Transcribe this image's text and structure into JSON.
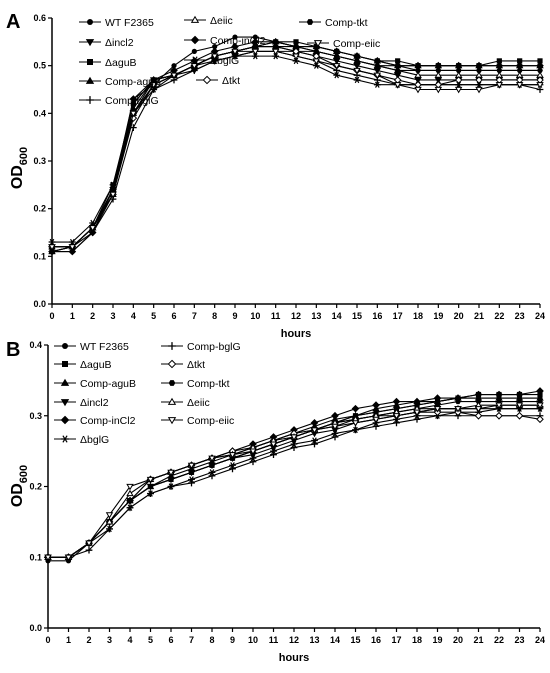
{
  "chart_data": [
    {
      "panel_label": "A",
      "type": "line",
      "xlabel": "hours",
      "ylabel_main": "OD",
      "ylabel_sub": "600",
      "xlim": [
        0,
        24
      ],
      "ylim": [
        0,
        0.6
      ],
      "xticks": [
        "0",
        "1",
        "2",
        "3",
        "4",
        "5",
        "6",
        "7",
        "8",
        "9",
        "10",
        "11",
        "12",
        "13",
        "14",
        "15",
        "16",
        "17",
        "18",
        "19",
        "20",
        "21",
        "22",
        "23",
        "24"
      ],
      "yticks": [
        "0.0",
        "0.1",
        "0.2",
        "0.3",
        "0.4",
        "0.5",
        "0.6"
      ],
      "grid": false,
      "legend": "top",
      "x": [
        0,
        1,
        2,
        3,
        4,
        5,
        6,
        7,
        8,
        9,
        10,
        11,
        12,
        13,
        14,
        15,
        16,
        17,
        18,
        19,
        20,
        21,
        22,
        23,
        24
      ],
      "series": [
        {
          "name": "WT F2365",
          "marker": "circle",
          "values": [
            0.11,
            0.11,
            0.15,
            0.23,
            0.43,
            0.46,
            0.5,
            0.53,
            0.54,
            0.56,
            0.56,
            0.55,
            0.54,
            0.53,
            0.52,
            0.51,
            0.5,
            0.5,
            0.49,
            0.49,
            0.49,
            0.49,
            0.49,
            0.49,
            0.49
          ]
        },
        {
          "name": "Δincl2",
          "marker": "tri-down",
          "values": [
            0.12,
            0.12,
            0.16,
            0.24,
            0.4,
            0.47,
            0.48,
            0.49,
            0.51,
            0.52,
            0.53,
            0.53,
            0.53,
            0.52,
            0.51,
            0.5,
            0.49,
            0.48,
            0.47,
            0.47,
            0.47,
            0.47,
            0.47,
            0.47,
            0.47
          ]
        },
        {
          "name": "ΔaguB",
          "marker": "square",
          "values": [
            0.11,
            0.12,
            0.16,
            0.25,
            0.42,
            0.47,
            0.48,
            0.5,
            0.52,
            0.53,
            0.54,
            0.55,
            0.55,
            0.54,
            0.53,
            0.52,
            0.51,
            0.51,
            0.5,
            0.5,
            0.5,
            0.5,
            0.51,
            0.51,
            0.51
          ]
        },
        {
          "name": "Comp-aguB",
          "marker": "tri-up",
          "values": [
            0.11,
            0.12,
            0.16,
            0.24,
            0.41,
            0.47,
            0.48,
            0.5,
            0.52,
            0.53,
            0.54,
            0.55,
            0.54,
            0.54,
            0.53,
            0.52,
            0.51,
            0.5,
            0.5,
            0.5,
            0.5,
            0.5,
            0.5,
            0.5,
            0.5
          ]
        },
        {
          "name": "Comp-bglG",
          "marker": "plus",
          "values": [
            0.12,
            0.12,
            0.15,
            0.22,
            0.37,
            0.45,
            0.47,
            0.49,
            0.51,
            0.52,
            0.53,
            0.53,
            0.52,
            0.51,
            0.49,
            0.48,
            0.47,
            0.46,
            0.46,
            0.46,
            0.46,
            0.46,
            0.46,
            0.46,
            0.45
          ]
        },
        {
          "name": "Δeiic",
          "marker": "tri-up-open",
          "values": [
            0.12,
            0.12,
            0.16,
            0.23,
            0.4,
            0.46,
            0.48,
            0.5,
            0.52,
            0.53,
            0.54,
            0.54,
            0.53,
            0.53,
            0.52,
            0.51,
            0.5,
            0.49,
            0.48,
            0.48,
            0.48,
            0.48,
            0.48,
            0.48,
            0.48
          ]
        },
        {
          "name": "Comp-inCl2",
          "marker": "diamond",
          "values": [
            0.11,
            0.11,
            0.15,
            0.24,
            0.43,
            0.47,
            0.49,
            0.51,
            0.53,
            0.54,
            0.55,
            0.55,
            0.54,
            0.54,
            0.53,
            0.52,
            0.51,
            0.5,
            0.5,
            0.5,
            0.5,
            0.5,
            0.5,
            0.5,
            0.5
          ]
        },
        {
          "name": "ΔbglG",
          "marker": "star",
          "values": [
            0.13,
            0.13,
            0.17,
            0.25,
            0.4,
            0.45,
            0.48,
            0.5,
            0.51,
            0.52,
            0.52,
            0.52,
            0.51,
            0.5,
            0.48,
            0.47,
            0.46,
            0.46,
            0.46,
            0.46,
            0.46,
            0.46,
            0.46,
            0.46,
            0.46
          ]
        },
        {
          "name": "Δtkt",
          "marker": "diamond-open",
          "values": [
            0.12,
            0.12,
            0.16,
            0.23,
            0.39,
            0.46,
            0.48,
            0.5,
            0.52,
            0.53,
            0.54,
            0.54,
            0.53,
            0.52,
            0.5,
            0.49,
            0.48,
            0.47,
            0.46,
            0.46,
            0.47,
            0.47,
            0.47,
            0.47,
            0.47
          ]
        },
        {
          "name": "Comp-tkt",
          "marker": "hexagon",
          "values": [
            0.11,
            0.12,
            0.16,
            0.24,
            0.42,
            0.47,
            0.48,
            0.5,
            0.52,
            0.53,
            0.54,
            0.54,
            0.54,
            0.53,
            0.52,
            0.51,
            0.5,
            0.49,
            0.49,
            0.49,
            0.49,
            0.49,
            0.49,
            0.49,
            0.49
          ]
        },
        {
          "name": "Comp-eiic",
          "marker": "tri-down-open",
          "values": [
            0.12,
            0.12,
            0.16,
            0.23,
            0.4,
            0.46,
            0.48,
            0.5,
            0.52,
            0.53,
            0.53,
            0.53,
            0.52,
            0.51,
            0.5,
            0.49,
            0.48,
            0.46,
            0.45,
            0.45,
            0.45,
            0.45,
            0.46,
            0.46,
            0.46
          ]
        }
      ]
    },
    {
      "panel_label": "B",
      "type": "line",
      "xlabel": "hours",
      "ylabel_main": "OD",
      "ylabel_sub": "600",
      "xlim": [
        0,
        24
      ],
      "ylim": [
        0,
        0.4
      ],
      "xticks": [
        "0",
        "1",
        "2",
        "3",
        "4",
        "5",
        "6",
        "7",
        "8",
        "9",
        "10",
        "11",
        "12",
        "13",
        "14",
        "15",
        "16",
        "17",
        "18",
        "19",
        "20",
        "21",
        "22",
        "23",
        "24"
      ],
      "yticks": [
        "0.0",
        "0.1",
        "0.2",
        "0.3",
        "0.4"
      ],
      "grid": false,
      "legend": "top",
      "x": [
        0,
        1,
        2,
        3,
        4,
        5,
        6,
        7,
        8,
        9,
        10,
        11,
        12,
        13,
        14,
        15,
        16,
        17,
        18,
        19,
        20,
        21,
        22,
        23,
        24
      ],
      "series": [
        {
          "name": "WT F2365",
          "marker": "circle",
          "values": [
            0.095,
            0.095,
            0.12,
            0.15,
            0.18,
            0.2,
            0.21,
            0.22,
            0.23,
            0.24,
            0.25,
            0.26,
            0.27,
            0.28,
            0.29,
            0.3,
            0.305,
            0.31,
            0.315,
            0.32,
            0.325,
            0.325,
            0.325,
            0.325,
            0.325
          ]
        },
        {
          "name": "ΔaguB",
          "marker": "square",
          "values": [
            0.1,
            0.1,
            0.12,
            0.15,
            0.18,
            0.2,
            0.21,
            0.22,
            0.23,
            0.24,
            0.25,
            0.26,
            0.27,
            0.28,
            0.29,
            0.3,
            0.305,
            0.31,
            0.315,
            0.32,
            0.325,
            0.33,
            0.33,
            0.33,
            0.33
          ]
        },
        {
          "name": "Comp-aguB",
          "marker": "tri-up",
          "values": [
            0.1,
            0.1,
            0.12,
            0.15,
            0.18,
            0.2,
            0.215,
            0.225,
            0.235,
            0.245,
            0.255,
            0.265,
            0.275,
            0.285,
            0.295,
            0.3,
            0.31,
            0.315,
            0.32,
            0.32,
            0.325,
            0.325,
            0.325,
            0.325,
            0.325
          ]
        },
        {
          "name": "Δincl2",
          "marker": "tri-down",
          "values": [
            0.1,
            0.1,
            0.12,
            0.15,
            0.18,
            0.2,
            0.21,
            0.22,
            0.23,
            0.24,
            0.245,
            0.255,
            0.265,
            0.275,
            0.28,
            0.29,
            0.295,
            0.3,
            0.305,
            0.31,
            0.31,
            0.31,
            0.31,
            0.31,
            0.31
          ]
        },
        {
          "name": "Comp-inCl2",
          "marker": "diamond",
          "values": [
            0.1,
            0.1,
            0.12,
            0.15,
            0.18,
            0.21,
            0.22,
            0.23,
            0.24,
            0.25,
            0.26,
            0.27,
            0.28,
            0.29,
            0.3,
            0.31,
            0.315,
            0.32,
            0.32,
            0.325,
            0.325,
            0.33,
            0.33,
            0.33,
            0.335
          ]
        },
        {
          "name": "ΔbglG",
          "marker": "star",
          "values": [
            0.1,
            0.1,
            0.12,
            0.14,
            0.17,
            0.19,
            0.2,
            0.21,
            0.22,
            0.23,
            0.24,
            0.25,
            0.26,
            0.265,
            0.275,
            0.28,
            0.29,
            0.295,
            0.3,
            0.3,
            0.305,
            0.305,
            0.31,
            0.31,
            0.31
          ]
        },
        {
          "name": "Comp-bglG",
          "marker": "plus",
          "values": [
            0.1,
            0.1,
            0.11,
            0.14,
            0.17,
            0.19,
            0.2,
            0.205,
            0.215,
            0.225,
            0.235,
            0.245,
            0.255,
            0.26,
            0.27,
            0.28,
            0.285,
            0.29,
            0.295,
            0.3,
            0.3,
            0.3,
            0.3,
            0.3,
            0.3
          ]
        },
        {
          "name": "Δtkt",
          "marker": "diamond-open",
          "values": [
            0.1,
            0.1,
            0.12,
            0.15,
            0.18,
            0.21,
            0.22,
            0.23,
            0.24,
            0.25,
            0.255,
            0.265,
            0.275,
            0.28,
            0.29,
            0.295,
            0.3,
            0.3,
            0.305,
            0.305,
            0.305,
            0.3,
            0.3,
            0.3,
            0.295
          ]
        },
        {
          "name": "Comp-tkt",
          "marker": "hexagon",
          "values": [
            0.1,
            0.1,
            0.12,
            0.15,
            0.18,
            0.2,
            0.21,
            0.22,
            0.23,
            0.24,
            0.25,
            0.26,
            0.27,
            0.28,
            0.285,
            0.295,
            0.3,
            0.305,
            0.31,
            0.315,
            0.32,
            0.32,
            0.32,
            0.32,
            0.32
          ]
        },
        {
          "name": "Δeiic",
          "marker": "tri-up-open",
          "values": [
            0.1,
            0.1,
            0.12,
            0.15,
            0.19,
            0.21,
            0.22,
            0.23,
            0.24,
            0.245,
            0.255,
            0.265,
            0.27,
            0.28,
            0.29,
            0.295,
            0.3,
            0.305,
            0.31,
            0.31,
            0.31,
            0.315,
            0.315,
            0.315,
            0.315
          ]
        },
        {
          "name": "Comp-eiic",
          "marker": "tri-down-open",
          "values": [
            0.1,
            0.1,
            0.12,
            0.16,
            0.2,
            0.21,
            0.22,
            0.23,
            0.24,
            0.245,
            0.25,
            0.26,
            0.27,
            0.28,
            0.285,
            0.29,
            0.295,
            0.3,
            0.305,
            0.31,
            0.31,
            0.31,
            0.315,
            0.315,
            0.315
          ]
        }
      ]
    }
  ]
}
